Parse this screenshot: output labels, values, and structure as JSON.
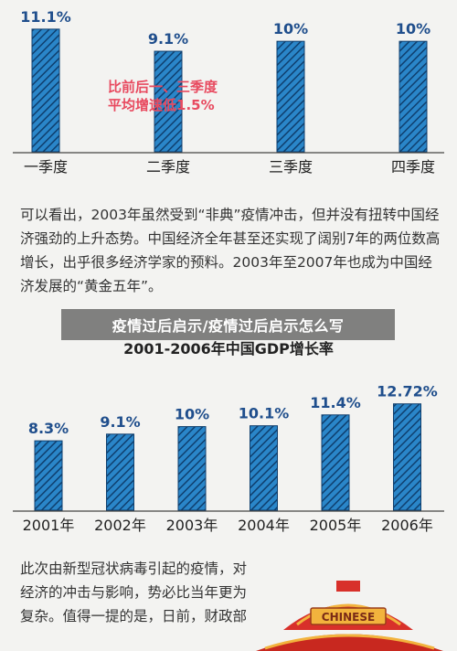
{
  "chart_data": [
    {
      "type": "bar",
      "title": "",
      "categories": [
        "一季度",
        "二季度",
        "三季度",
        "四季度"
      ],
      "values": [
        11.1,
        9.1,
        10,
        10
      ],
      "value_labels": [
        "11.1%",
        "9.1%",
        "10%",
        "10%"
      ],
      "ylim": [
        0,
        12
      ],
      "grid": false,
      "bar_color": "#1f77b4",
      "annotation": {
        "line1": "比前后一、三季度",
        "line2": "平均增速低1.5%",
        "color": "#e84a5f"
      }
    },
    {
      "type": "bar",
      "title": "2001-2006年中国GDP增长率",
      "categories": [
        "2001年",
        "2002年",
        "2003年",
        "2004年",
        "2005年",
        "2006年"
      ],
      "values": [
        8.3,
        9.1,
        10.0,
        10.1,
        11.4,
        12.72
      ],
      "value_labels": [
        "8.3%",
        "9.1%",
        "10%",
        "10.1%",
        "11.4%",
        "12.72%"
      ],
      "ylim": [
        0,
        14
      ],
      "grid": false,
      "bar_color": "#1f77b4"
    }
  ],
  "text": {
    "paragraph1": "可以看出，2003年虽然受到“非典”疫情冲击，但并没有扭转中国经济强劲的上升态势。中国经济全年甚至还实现了阔别7年的两位数高增长，出乎很多经济学家的预料。2003年至2007年也成为中国经济发展的“黄金五年”。",
    "banner": "疫情过后启示/疫情过后启示怎么写",
    "paragraph2": "此次由新型冠状病毒引起的疫情，对经济的冲击与影响，势必比当年更为复杂。值得一提的是，日前，财政部",
    "illustration_label": "CHINESE"
  },
  "colors": {
    "background": "#f3f3f1",
    "bar_fill": "#1f77b4",
    "bar_stripe": "#0f3f6e",
    "label": "#1f4e8c",
    "annotation": "#e84a5f",
    "roof_red": "#d8302a",
    "roof_gold": "#f2b33d"
  }
}
